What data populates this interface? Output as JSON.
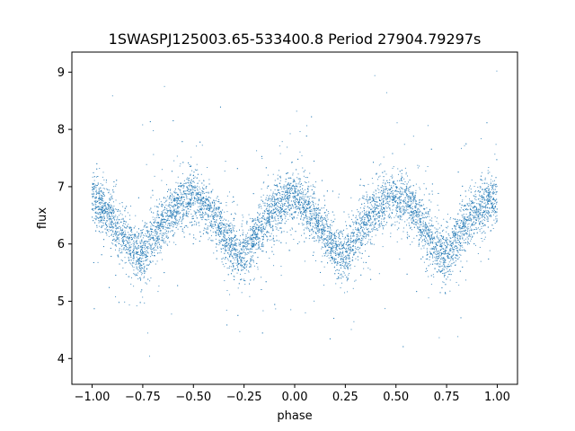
{
  "chart_data": {
    "type": "scatter",
    "title": "1SWASPJ125003.65-533400.8 Period 27904.79297s",
    "xlabel": "phase",
    "ylabel": "flux",
    "xlim": [
      -1.1,
      1.1
    ],
    "ylim": [
      3.55,
      9.35
    ],
    "xticks": [
      -1.0,
      -0.75,
      -0.5,
      -0.25,
      0.0,
      0.25,
      0.5,
      0.75,
      1.0
    ],
    "xtick_labels": [
      "−1.00",
      "−0.75",
      "−0.50",
      "−0.25",
      "0.00",
      "0.25",
      "0.50",
      "0.75",
      "1.00"
    ],
    "yticks": [
      4,
      5,
      6,
      7,
      8,
      9
    ],
    "ytick_labels": [
      "4",
      "5",
      "6",
      "7",
      "8",
      "9"
    ],
    "grid": false,
    "marker_color": "#1f77b4",
    "series": [
      {
        "phase": [
          -1.0,
          -0.95,
          -0.9,
          -0.85,
          -0.8,
          -0.77,
          -0.75,
          -0.7,
          -0.65,
          -0.6,
          -0.55,
          -0.5,
          -0.45,
          -0.4,
          -0.35,
          -0.3,
          -0.27,
          -0.25,
          -0.2,
          -0.15,
          -0.1,
          -0.05,
          0.0,
          0.05,
          0.1,
          0.15,
          0.2,
          0.23,
          0.25,
          0.3,
          0.35,
          0.4,
          0.45,
          0.5,
          0.55,
          0.6,
          0.65,
          0.7,
          0.73,
          0.75,
          0.8,
          0.85,
          0.9,
          0.95,
          1.0
        ],
        "flux_trend": [
          6.8,
          6.65,
          6.45,
          6.15,
          5.9,
          5.8,
          5.85,
          6.1,
          6.4,
          6.6,
          6.75,
          6.8,
          6.7,
          6.5,
          6.2,
          5.9,
          5.75,
          5.8,
          6.1,
          6.4,
          6.6,
          6.75,
          6.8,
          6.65,
          6.45,
          6.15,
          5.9,
          5.8,
          5.85,
          6.1,
          6.4,
          6.6,
          6.75,
          6.8,
          6.7,
          6.5,
          6.2,
          5.9,
          5.75,
          5.8,
          6.1,
          6.4,
          6.6,
          6.75,
          6.8
        ]
      }
    ]
  }
}
